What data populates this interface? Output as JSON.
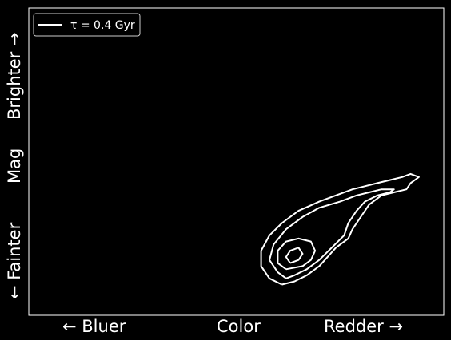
{
  "chart_data": {
    "type": "line",
    "title": "",
    "xlabel": {
      "left": "← Bluer",
      "center": "Color",
      "right": "Redder →"
    },
    "ylabel": {
      "bottom": "← Fainter",
      "center": "Mag",
      "top": "Brighter →"
    },
    "legend": {
      "placement": "top-left",
      "entries": [
        {
          "label": "τ = 0.4 Gyr",
          "color": "#ffffff"
        }
      ]
    },
    "series": [
      {
        "name": "τ = 0.4 Gyr",
        "kind": "density-contours",
        "xlim": [
          0,
          1
        ],
        "ylim": [
          0,
          1
        ],
        "levels": [
          {
            "level": 1,
            "points": [
              [
                0.61,
                0.1
              ],
              [
                0.58,
                0.12
              ],
              [
                0.56,
                0.16
              ],
              [
                0.56,
                0.21
              ],
              [
                0.58,
                0.26
              ],
              [
                0.61,
                0.3
              ],
              [
                0.65,
                0.34
              ],
              [
                0.7,
                0.37
              ],
              [
                0.74,
                0.39
              ],
              [
                0.78,
                0.41
              ],
              [
                0.81,
                0.42
              ],
              [
                0.84,
                0.43
              ],
              [
                0.87,
                0.44
              ],
              [
                0.9,
                0.45
              ],
              [
                0.92,
                0.46
              ],
              [
                0.94,
                0.45
              ],
              [
                0.92,
                0.43
              ],
              [
                0.91,
                0.41
              ],
              [
                0.88,
                0.4
              ],
              [
                0.85,
                0.39
              ],
              [
                0.82,
                0.36
              ],
              [
                0.8,
                0.32
              ],
              [
                0.78,
                0.28
              ],
              [
                0.77,
                0.25
              ],
              [
                0.74,
                0.22
              ],
              [
                0.72,
                0.19
              ],
              [
                0.7,
                0.16
              ],
              [
                0.67,
                0.13
              ],
              [
                0.64,
                0.11
              ],
              [
                0.61,
                0.1
              ]
            ]
          },
          {
            "level": 2,
            "points": [
              [
                0.62,
                0.12
              ],
              [
                0.6,
                0.14
              ],
              [
                0.58,
                0.18
              ],
              [
                0.59,
                0.23
              ],
              [
                0.62,
                0.28
              ],
              [
                0.66,
                0.32
              ],
              [
                0.7,
                0.35
              ],
              [
                0.75,
                0.37
              ],
              [
                0.79,
                0.39
              ],
              [
                0.82,
                0.4
              ],
              [
                0.85,
                0.41
              ],
              [
                0.88,
                0.41
              ],
              [
                0.87,
                0.4
              ],
              [
                0.84,
                0.39
              ],
              [
                0.81,
                0.37
              ],
              [
                0.79,
                0.34
              ],
              [
                0.77,
                0.3
              ],
              [
                0.76,
                0.26
              ],
              [
                0.73,
                0.22
              ],
              [
                0.7,
                0.18
              ],
              [
                0.67,
                0.15
              ],
              [
                0.64,
                0.13
              ],
              [
                0.62,
                0.12
              ]
            ]
          },
          {
            "level": 3,
            "points": [
              [
                0.62,
                0.15
              ],
              [
                0.6,
                0.17
              ],
              [
                0.6,
                0.21
              ],
              [
                0.62,
                0.24
              ],
              [
                0.65,
                0.25
              ],
              [
                0.68,
                0.24
              ],
              [
                0.69,
                0.21
              ],
              [
                0.68,
                0.18
              ],
              [
                0.66,
                0.16
              ],
              [
                0.62,
                0.15
              ]
            ]
          },
          {
            "level": 4,
            "points": [
              [
                0.63,
                0.17
              ],
              [
                0.62,
                0.19
              ],
              [
                0.63,
                0.21
              ],
              [
                0.65,
                0.22
              ],
              [
                0.66,
                0.2
              ],
              [
                0.65,
                0.18
              ],
              [
                0.63,
                0.17
              ]
            ]
          }
        ]
      }
    ],
    "grid": false
  }
}
